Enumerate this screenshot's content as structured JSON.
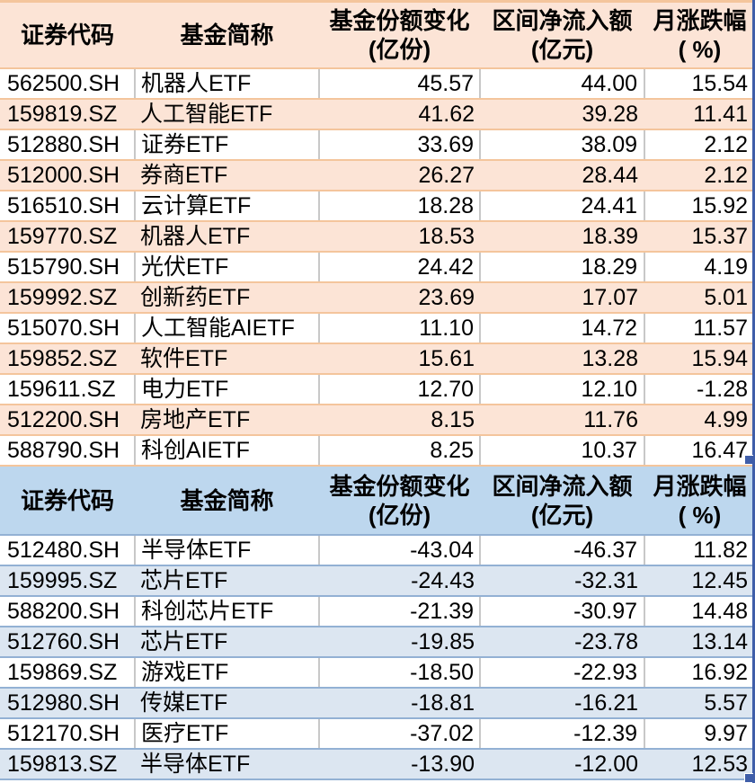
{
  "chart_data": [
    {
      "type": "table",
      "theme": "orange",
      "columns": [
        [
          "证券代码",
          ""
        ],
        [
          "基金简称",
          ""
        ],
        [
          "基金份额变化",
          "(亿份)"
        ],
        [
          "区间净流入额",
          "(亿元)"
        ],
        [
          "月涨跌幅",
          "( %)"
        ]
      ],
      "rows": [
        [
          "562500.SH",
          "机器人ETF",
          "45.57",
          "44.00",
          "15.54"
        ],
        [
          "159819.SZ",
          "人工智能ETF",
          "41.62",
          "39.28",
          "11.41"
        ],
        [
          "512880.SH",
          "证券ETF",
          "33.69",
          "38.09",
          "2.12"
        ],
        [
          "512000.SH",
          "券商ETF",
          "26.27",
          "28.44",
          "2.12"
        ],
        [
          "516510.SH",
          "云计算ETF",
          "18.28",
          "24.41",
          "15.92"
        ],
        [
          "159770.SZ",
          "机器人ETF",
          "18.53",
          "18.39",
          "15.37"
        ],
        [
          "515790.SH",
          "光伏ETF",
          "24.42",
          "18.29",
          "4.19"
        ],
        [
          "159992.SZ",
          "创新药ETF",
          "23.69",
          "17.07",
          "5.01"
        ],
        [
          "515070.SH",
          "人工智能AIETF",
          "11.10",
          "14.72",
          "11.57"
        ],
        [
          "159852.SZ",
          "软件ETF",
          "15.61",
          "13.28",
          "15.94"
        ],
        [
          "159611.SZ",
          "电力ETF",
          "12.70",
          "12.10",
          "-1.28"
        ],
        [
          "512200.SH",
          "房地产ETF",
          "8.15",
          "11.76",
          "4.99"
        ],
        [
          "588790.SH",
          "科创AIETF",
          "8.25",
          "10.37",
          "16.47"
        ]
      ]
    },
    {
      "type": "table",
      "theme": "blue",
      "columns": [
        [
          "证券代码",
          ""
        ],
        [
          "基金简称",
          ""
        ],
        [
          "基金份额变化",
          "(亿份)"
        ],
        [
          "区间净流入额",
          "(亿元)"
        ],
        [
          "月涨跌幅",
          "( %)"
        ]
      ],
      "rows": [
        [
          "512480.SH",
          "半导体ETF",
          "-43.04",
          "-46.37",
          "11.82"
        ],
        [
          "159995.SZ",
          "芯片ETF",
          "-24.43",
          "-32.31",
          "12.45"
        ],
        [
          "588200.SH",
          "科创芯片ETF",
          "-21.39",
          "-30.97",
          "14.48"
        ],
        [
          "512760.SH",
          "芯片ETF",
          "-19.85",
          "-23.78",
          "13.14"
        ],
        [
          "159869.SZ",
          "游戏ETF",
          "-18.50",
          "-22.93",
          "16.92"
        ],
        [
          "512980.SH",
          "传媒ETF",
          "-18.81",
          "-16.21",
          "5.57"
        ],
        [
          "512170.SH",
          "医疗ETF",
          "-37.02",
          "-12.39",
          "9.97"
        ],
        [
          "159813.SZ",
          "半导体ETF",
          "-13.90",
          "-12.00",
          "12.53"
        ]
      ]
    }
  ],
  "colors": {
    "orange_header_bg": "#FCE4D6",
    "orange_stripe_bg": "#FCE4D6",
    "orange_border": "#F4C59C",
    "blue_header_bg": "#BDD7EE",
    "blue_stripe_bg": "#DCE6F1",
    "blue_border": "#93B1D4",
    "gridline": "#C8C8C8",
    "selection_blue": "#3F5EA9",
    "text": "#000000"
  }
}
